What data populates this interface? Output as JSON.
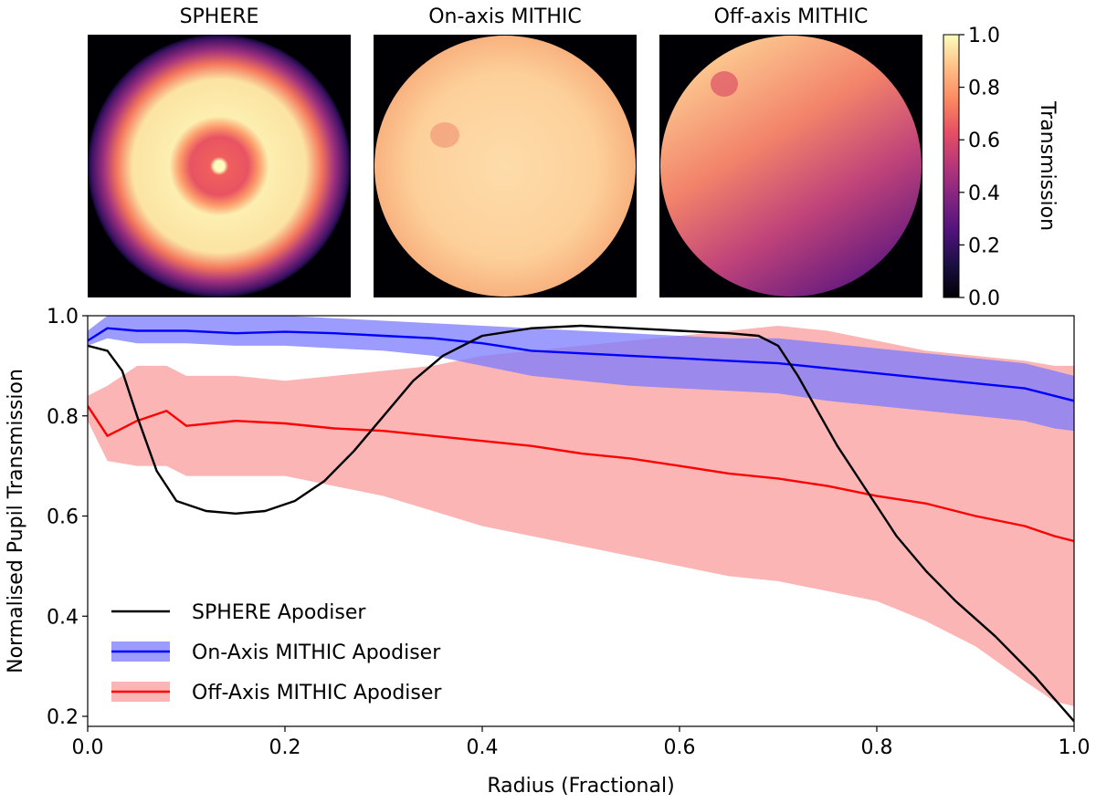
{
  "images": {
    "panels": [
      {
        "title": "SPHERE"
      },
      {
        "title": "On-axis MITHIC"
      },
      {
        "title": "Off-axis MITHIC"
      }
    ],
    "colorbar": {
      "label": "Transmission",
      "ticks": [
        "0.0",
        "0.2",
        "0.4",
        "0.6",
        "0.8",
        "1.0"
      ],
      "tick_values": [
        0.0,
        0.2,
        0.4,
        0.6,
        0.8,
        1.0
      ],
      "colormap": "magma"
    }
  },
  "chart_data": {
    "type": "line",
    "title": "",
    "xlabel": "Radius (Fractional)",
    "ylabel": "Normalised Pupil Transmission",
    "xlim": [
      0.0,
      1.0
    ],
    "ylim": [
      0.18,
      1.0
    ],
    "xticks": [
      "0.0",
      "0.2",
      "0.4",
      "0.6",
      "0.8",
      "1.0"
    ],
    "xtick_values": [
      0.0,
      0.2,
      0.4,
      0.6,
      0.8,
      1.0
    ],
    "yticks": [
      "0.2",
      "0.4",
      "0.6",
      "0.8",
      "1.0"
    ],
    "ytick_values": [
      0.2,
      0.4,
      0.6,
      0.8,
      1.0
    ],
    "grid": false,
    "legend_position": "bottom-left",
    "series": [
      {
        "name": "SPHERE Apodiser",
        "color": "#000000",
        "x": [
          0.0,
          0.02,
          0.035,
          0.05,
          0.07,
          0.09,
          0.12,
          0.15,
          0.18,
          0.21,
          0.24,
          0.27,
          0.3,
          0.33,
          0.36,
          0.4,
          0.45,
          0.5,
          0.55,
          0.6,
          0.65,
          0.68,
          0.7,
          0.72,
          0.74,
          0.76,
          0.78,
          0.8,
          0.82,
          0.85,
          0.88,
          0.92,
          0.96,
          1.0
        ],
        "y": [
          0.94,
          0.93,
          0.89,
          0.8,
          0.69,
          0.63,
          0.61,
          0.605,
          0.61,
          0.63,
          0.67,
          0.73,
          0.8,
          0.87,
          0.92,
          0.96,
          0.975,
          0.98,
          0.975,
          0.97,
          0.965,
          0.96,
          0.94,
          0.88,
          0.81,
          0.74,
          0.68,
          0.62,
          0.56,
          0.49,
          0.43,
          0.36,
          0.28,
          0.19
        ]
      },
      {
        "name": "On-Axis MITHIC Apodiser",
        "color": "#0000ff",
        "band_color": "#7b7bff",
        "x": [
          0.0,
          0.02,
          0.05,
          0.1,
          0.15,
          0.2,
          0.25,
          0.3,
          0.35,
          0.4,
          0.45,
          0.5,
          0.55,
          0.6,
          0.65,
          0.7,
          0.75,
          0.8,
          0.85,
          0.9,
          0.95,
          0.98,
          1.0
        ],
        "y": [
          0.95,
          0.975,
          0.97,
          0.97,
          0.965,
          0.968,
          0.965,
          0.96,
          0.955,
          0.945,
          0.93,
          0.925,
          0.92,
          0.915,
          0.91,
          0.905,
          0.895,
          0.885,
          0.875,
          0.865,
          0.855,
          0.84,
          0.83
        ],
        "upper": [
          0.97,
          1.0,
          1.0,
          1.0,
          1.0,
          1.0,
          0.995,
          0.99,
          0.985,
          0.98,
          0.975,
          0.97,
          0.965,
          0.96,
          0.955,
          0.955,
          0.945,
          0.935,
          0.925,
          0.915,
          0.905,
          0.89,
          0.88
        ],
        "lower": [
          0.94,
          0.955,
          0.945,
          0.945,
          0.94,
          0.94,
          0.935,
          0.93,
          0.92,
          0.9,
          0.88,
          0.87,
          0.86,
          0.855,
          0.85,
          0.845,
          0.83,
          0.82,
          0.81,
          0.8,
          0.79,
          0.775,
          0.77
        ]
      },
      {
        "name": "Off-Axis MITHIC Apodiser",
        "color": "#ff0000",
        "band_color": "#fbb5b5",
        "x": [
          0.0,
          0.02,
          0.05,
          0.08,
          0.1,
          0.15,
          0.2,
          0.25,
          0.3,
          0.35,
          0.4,
          0.45,
          0.5,
          0.55,
          0.6,
          0.65,
          0.7,
          0.75,
          0.8,
          0.85,
          0.9,
          0.95,
          0.98,
          1.0
        ],
        "y": [
          0.82,
          0.76,
          0.79,
          0.81,
          0.78,
          0.79,
          0.785,
          0.775,
          0.77,
          0.76,
          0.75,
          0.74,
          0.725,
          0.715,
          0.7,
          0.685,
          0.675,
          0.66,
          0.64,
          0.625,
          0.6,
          0.58,
          0.56,
          0.55
        ],
        "upper": [
          0.84,
          0.86,
          0.9,
          0.9,
          0.88,
          0.88,
          0.87,
          0.88,
          0.89,
          0.9,
          0.92,
          0.93,
          0.94,
          0.95,
          0.96,
          0.97,
          0.98,
          0.97,
          0.95,
          0.93,
          0.92,
          0.91,
          0.9,
          0.9
        ],
        "lower": [
          0.79,
          0.71,
          0.7,
          0.7,
          0.68,
          0.68,
          0.68,
          0.66,
          0.64,
          0.61,
          0.58,
          0.56,
          0.54,
          0.52,
          0.5,
          0.48,
          0.47,
          0.45,
          0.43,
          0.39,
          0.34,
          0.27,
          0.23,
          0.22
        ]
      }
    ]
  }
}
